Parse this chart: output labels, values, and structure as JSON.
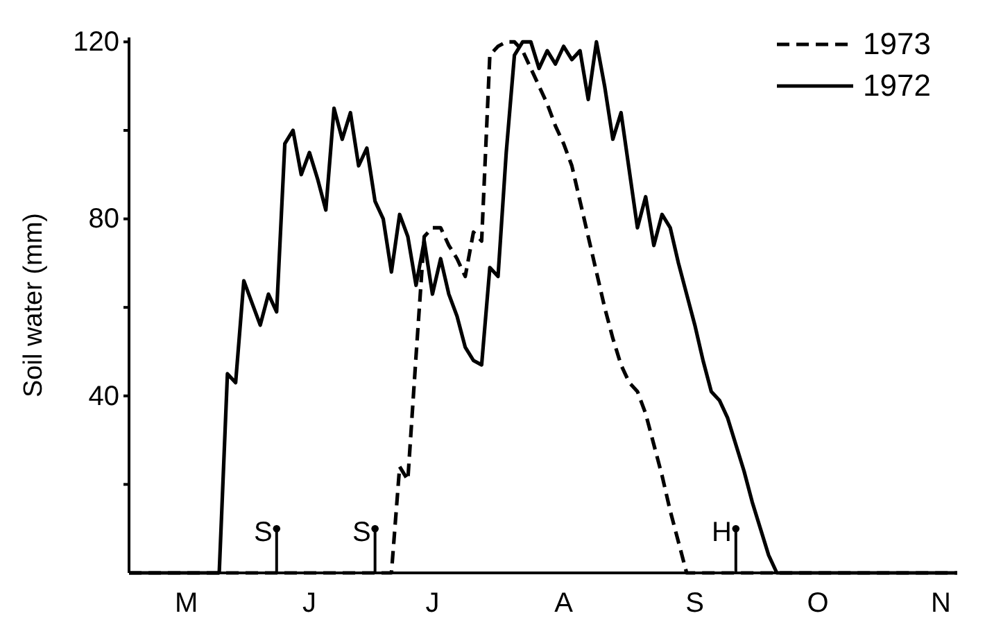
{
  "chart_data": {
    "type": "line",
    "ylabel": "Soil water (mm)",
    "categories": [
      null,
      null,
      null,
      null,
      null,
      null,
      null,
      "M",
      null,
      null,
      null,
      null,
      null,
      null,
      null,
      null,
      null,
      null,
      null,
      null,
      null,
      null,
      "J",
      null,
      null,
      null,
      null,
      null,
      null,
      null,
      null,
      null,
      null,
      null,
      null,
      null,
      null,
      "J",
      null,
      null,
      null,
      null,
      null,
      null,
      null,
      null,
      null,
      null,
      null,
      null,
      null,
      null,
      null,
      "A",
      null,
      null,
      null,
      null,
      null,
      null,
      null,
      null,
      null,
      null,
      null,
      null,
      null,
      null,
      null,
      "S",
      null,
      null,
      null,
      null,
      null,
      null,
      null,
      null,
      null,
      null,
      null,
      null,
      null,
      null,
      "O",
      null,
      null,
      null,
      null,
      null,
      null,
      null,
      null,
      null,
      null,
      null,
      null,
      null,
      null,
      "N",
      null,
      null
    ],
    "ylim": [
      0,
      121
    ],
    "yticks": [
      {
        "value": 20,
        "label": null
      },
      40,
      {
        "value": 60,
        "label": null
      },
      80,
      {
        "value": 100,
        "label": null
      },
      120
    ],
    "legend": "top right",
    "grid": false,
    "marker": "none",
    "series": [
      {
        "name": "1973",
        "color": "#000000",
        "line_style": "dashed",
        "values": [
          0,
          0,
          0,
          0,
          0,
          0,
          0,
          0,
          0,
          0,
          0,
          0,
          0,
          0,
          0,
          0,
          0,
          0,
          0,
          0,
          0,
          0,
          0,
          0,
          0,
          0,
          0,
          0,
          0,
          0,
          0,
          0,
          0,
          24,
          21,
          49,
          76,
          78,
          78,
          74,
          71,
          67,
          77,
          75,
          117,
          119,
          120,
          120,
          118,
          114,
          110,
          106,
          101,
          97,
          92,
          84,
          76,
          68,
          60,
          53,
          47,
          43,
          41,
          36,
          29,
          22,
          14,
          7,
          0,
          0,
          0,
          0,
          0,
          0,
          0,
          0,
          0,
          0,
          0,
          0,
          0,
          0,
          0,
          0,
          0,
          0,
          0,
          0,
          0,
          0,
          0,
          0,
          0,
          0,
          0,
          0,
          0,
          0,
          0,
          0,
          0,
          0
        ]
      },
      {
        "name": "1972",
        "color": "#000000",
        "line_style": "solid",
        "values": [
          0,
          0,
          0,
          0,
          0,
          0,
          0,
          0,
          0,
          0,
          0,
          0,
          45,
          43,
          66,
          61,
          56,
          63,
          59,
          97,
          100,
          90,
          95,
          89,
          82,
          105,
          98,
          104,
          92,
          96,
          84,
          80,
          68,
          81,
          76,
          65,
          75,
          63,
          71,
          63,
          58,
          51,
          48,
          47,
          69,
          67,
          95,
          117,
          120,
          120,
          114,
          118,
          115,
          119,
          116,
          118,
          107,
          120,
          110,
          98,
          104,
          91,
          78,
          85,
          74,
          81,
          78,
          70,
          63,
          56,
          48,
          41,
          39,
          35,
          29,
          23,
          16,
          10,
          4,
          0,
          0,
          0,
          0,
          0,
          0,
          0,
          0,
          0,
          0,
          0,
          0,
          0,
          0,
          0,
          0,
          0,
          0,
          0,
          0,
          0,
          0,
          0
        ]
      },
      {
        "type": "lollipop",
        "color": "#000000",
        "marker": "circle",
        "values": [
          null,
          null,
          null,
          null,
          null,
          null,
          null,
          null,
          null,
          null,
          null,
          null,
          null,
          null,
          null,
          null,
          null,
          null,
          10,
          null,
          null,
          null,
          null,
          null,
          null,
          null,
          null,
          null,
          null,
          null,
          10,
          null,
          null,
          null,
          null,
          null,
          null,
          null,
          null,
          null,
          null,
          null,
          null,
          null,
          null,
          null,
          null,
          null,
          null,
          null,
          null,
          null,
          null,
          null,
          null,
          null,
          null,
          null,
          null,
          null,
          null,
          null,
          null,
          null,
          null,
          null,
          null,
          null,
          null,
          null,
          null,
          null,
          null,
          null,
          10,
          null,
          null,
          null,
          null,
          null,
          null,
          null,
          null,
          null,
          null,
          null,
          null,
          null,
          null,
          null,
          null,
          null,
          null,
          null,
          null,
          null,
          null,
          null,
          null,
          null,
          null,
          null
        ],
        "value_labels": [
          null,
          null,
          null,
          null,
          null,
          null,
          null,
          null,
          null,
          null,
          null,
          null,
          null,
          null,
          null,
          null,
          null,
          null,
          "S",
          null,
          null,
          null,
          null,
          null,
          null,
          null,
          null,
          null,
          null,
          null,
          "S",
          null,
          null,
          null,
          null,
          null,
          null,
          null,
          null,
          null,
          null,
          null,
          null,
          null,
          null,
          null,
          null,
          null,
          null,
          null,
          null,
          null,
          null,
          null,
          null,
          null,
          null,
          null,
          null,
          null,
          null,
          null,
          null,
          null,
          null,
          null,
          null,
          null,
          null,
          null,
          null,
          null,
          null,
          null,
          "H",
          null,
          null,
          null,
          null,
          null,
          null,
          null,
          null,
          null,
          null,
          null,
          null,
          null,
          null,
          null,
          null,
          null,
          null,
          null,
          null,
          null,
          null,
          null,
          null,
          null,
          null,
          null
        ]
      }
    ]
  }
}
